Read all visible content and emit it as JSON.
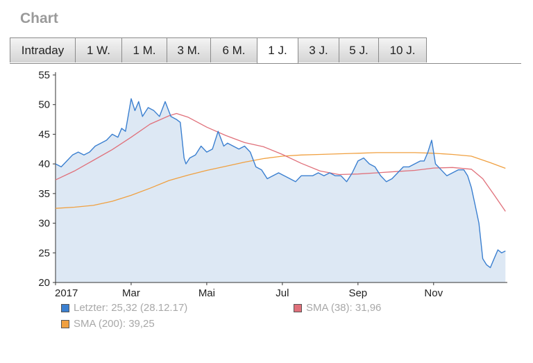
{
  "section": {
    "title": "Chart"
  },
  "tabs": [
    {
      "label": "Intraday",
      "active": false
    },
    {
      "label": "1 W.",
      "active": false
    },
    {
      "label": "1 M.",
      "active": false
    },
    {
      "label": "3 M.",
      "active": false
    },
    {
      "label": "6 M.",
      "active": false
    },
    {
      "label": "1 J.",
      "active": true
    },
    {
      "label": "3 J.",
      "active": false
    },
    {
      "label": "5 J.",
      "active": false
    },
    {
      "label": "10 J.",
      "active": false
    }
  ],
  "chart_data": {
    "type": "line",
    "ylim": [
      20,
      55
    ],
    "y_ticks": [
      "55",
      "50",
      "45",
      "40",
      "35",
      "30",
      "25",
      "20"
    ],
    "x_ticks": [
      {
        "label": "2017",
        "month": 0.0
      },
      {
        "label": "Mar",
        "month": 2.0
      },
      {
        "label": "Mai",
        "month": 4.0
      },
      {
        "label": "Jul",
        "month": 6.0
      },
      {
        "label": "Sep",
        "month": 8.0
      },
      {
        "label": "Nov",
        "month": 10.0
      }
    ],
    "x_unit": "months since 1 Jan 2017",
    "grid": false,
    "legend_position": "bottom",
    "series": [
      {
        "name": "Letzter",
        "legend_label": "Letzter: 25,32 (28.12.17)",
        "color": "#3a7fd0",
        "fill": "#dde8f4",
        "x": [
          0.0,
          0.15,
          0.3,
          0.45,
          0.6,
          0.75,
          0.9,
          1.05,
          1.2,
          1.35,
          1.5,
          1.65,
          1.75,
          1.85,
          2.0,
          2.1,
          2.2,
          2.3,
          2.45,
          2.6,
          2.75,
          2.9,
          3.05,
          3.2,
          3.3,
          3.4,
          3.45,
          3.55,
          3.7,
          3.85,
          4.0,
          4.15,
          4.3,
          4.45,
          4.55,
          4.7,
          4.85,
          5.0,
          5.15,
          5.3,
          5.45,
          5.6,
          5.75,
          5.9,
          6.05,
          6.2,
          6.35,
          6.5,
          6.65,
          6.8,
          6.95,
          7.1,
          7.25,
          7.4,
          7.55,
          7.7,
          7.85,
          8.0,
          8.15,
          8.3,
          8.45,
          8.6,
          8.75,
          8.9,
          9.05,
          9.2,
          9.35,
          9.5,
          9.65,
          9.75,
          9.85,
          9.95,
          10.05,
          10.2,
          10.35,
          10.5,
          10.65,
          10.8,
          10.9,
          11.0,
          11.1,
          11.2,
          11.3,
          11.4,
          11.5,
          11.6,
          11.7,
          11.8,
          11.9
        ],
        "y": [
          40,
          39.5,
          40.5,
          41.5,
          42,
          41.5,
          42,
          43,
          43.5,
          44,
          45,
          44.5,
          46,
          45.5,
          51,
          49,
          50.5,
          48,
          49.5,
          49,
          48,
          50.5,
          48,
          47.5,
          47,
          41,
          40,
          41,
          41.5,
          43,
          42,
          42.5,
          45.5,
          43,
          43.5,
          43,
          42.5,
          43,
          42,
          39.5,
          39,
          37.5,
          38,
          38.5,
          38,
          37.5,
          37,
          38,
          38,
          38,
          38.5,
          38,
          38.5,
          38,
          38,
          37,
          38.5,
          40.5,
          41,
          40,
          39.5,
          38,
          37,
          37.5,
          38.5,
          39.5,
          39.5,
          40,
          40.5,
          40.5,
          42,
          44,
          40,
          39,
          38,
          38.5,
          39,
          39,
          38,
          36,
          33,
          30,
          24,
          23,
          22.5,
          24,
          25.5,
          25,
          25.32
        ]
      },
      {
        "name": "SMA (38)",
        "legend_label": "SMA (38): 31,96",
        "color": "#e0707a",
        "x": [
          0.0,
          0.5,
          1.0,
          1.5,
          2.0,
          2.5,
          3.0,
          3.2,
          3.5,
          4.0,
          4.5,
          5.0,
          5.5,
          6.0,
          6.5,
          7.0,
          7.5,
          8.0,
          8.5,
          9.0,
          9.5,
          10.0,
          10.5,
          11.0,
          11.3,
          11.6,
          11.9
        ],
        "y": [
          37.3,
          38.8,
          40.6,
          42.4,
          44.5,
          46.7,
          48.1,
          48.5,
          47.9,
          46.2,
          44.8,
          43.6,
          42.9,
          41.6,
          40.1,
          38.8,
          38.2,
          38.3,
          38.5,
          38.7,
          38.9,
          39.3,
          39.4,
          39.1,
          37.5,
          34.8,
          32.0
        ]
      },
      {
        "name": "SMA (200)",
        "legend_label": "SMA (200): 39,25",
        "color": "#f0a040",
        "x": [
          0.0,
          0.5,
          1.0,
          1.5,
          2.0,
          2.5,
          3.0,
          3.5,
          4.0,
          4.5,
          5.0,
          5.5,
          6.0,
          6.5,
          7.0,
          7.5,
          8.0,
          8.5,
          9.0,
          9.5,
          10.0,
          10.5,
          11.0,
          11.5,
          11.9
        ],
        "y": [
          32.5,
          32.7,
          33.0,
          33.7,
          34.7,
          35.9,
          37.2,
          38.1,
          38.9,
          39.6,
          40.3,
          40.9,
          41.3,
          41.5,
          41.6,
          41.7,
          41.8,
          41.9,
          41.9,
          41.9,
          41.8,
          41.6,
          41.3,
          40.2,
          39.25
        ]
      }
    ]
  }
}
